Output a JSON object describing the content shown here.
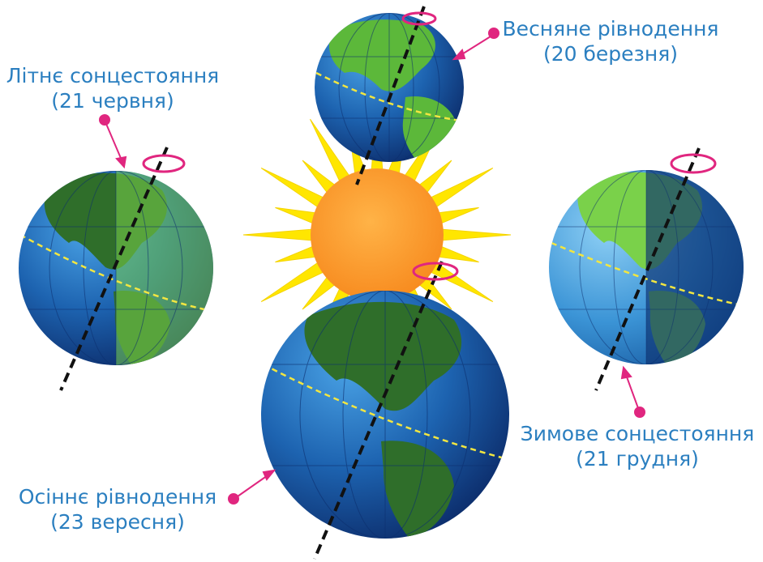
{
  "labels": {
    "summer": {
      "title": "Літнє сонцестояння",
      "date": "(21 червня)"
    },
    "spring": {
      "title": "Весняне рівнодення",
      "date": "(20 березня)"
    },
    "winter": {
      "title": "Зимове сонцестояння",
      "date": "(21 грудня)"
    },
    "autumn": {
      "title": "Осіннє рівнодення",
      "date": "(23 вересня)"
    }
  },
  "colors": {
    "label": "#2b7fc0",
    "marker": "#e0267f",
    "sun": "#f7941d",
    "rays": "#ffe600",
    "ocean": "#1d63b0",
    "land": "#5cb83a",
    "axis": "#111111",
    "equator": "#f2e641"
  },
  "icons": [
    "sun-icon",
    "earth-globe-icon",
    "rotation-arrow-icon",
    "pointer-dot-icon"
  ]
}
